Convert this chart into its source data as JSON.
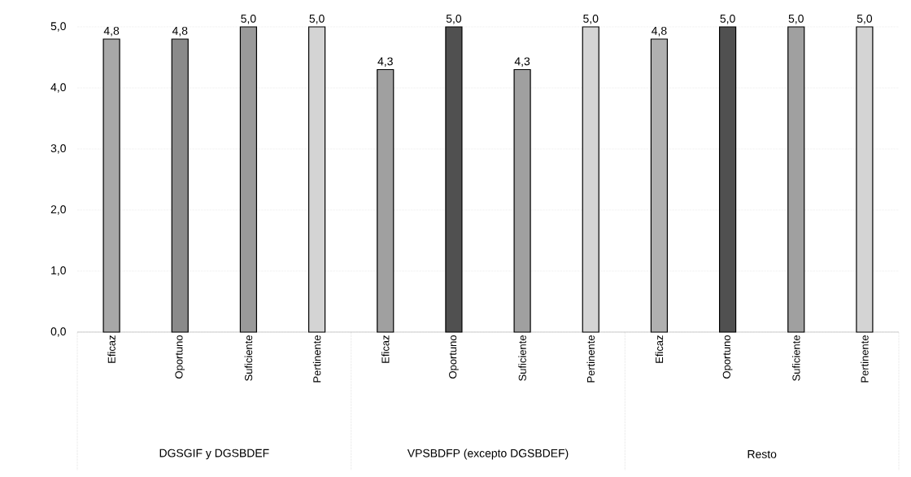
{
  "chart_data": {
    "type": "bar",
    "categories": [
      "Eficaz",
      "Oportuno",
      "Suficiente",
      "Pertinente",
      "Eficaz",
      "Oportuno",
      "Suficiente",
      "Pertinente",
      "Eficaz",
      "Oportuno",
      "Suficiente",
      "Pertinente"
    ],
    "values": [
      4.8,
      4.8,
      5.0,
      5.0,
      4.3,
      5.0,
      4.3,
      5.0,
      4.8,
      5.0,
      5.0,
      5.0
    ],
    "colors": [
      "#a8a8a8",
      "#8a8a8a",
      "#9a9a9a",
      "#d4d4d4",
      "#a0a0a0",
      "#505050",
      "#a0a0a0",
      "#d4d4d4",
      "#b0b0b0",
      "#505050",
      "#a0a0a0",
      "#d4d4d4"
    ],
    "value_labels": [
      "4,8",
      "4,8",
      "5,0",
      "5,0",
      "4,3",
      "5,0",
      "4,3",
      "5,0",
      "4,8",
      "5,0",
      "5,0",
      "5,0"
    ],
    "ylim": [
      0,
      5
    ],
    "yticks": [
      {
        "value": 0,
        "label": "0,0"
      },
      {
        "value": 1,
        "label": "1,0"
      },
      {
        "value": 2,
        "label": "2,0"
      },
      {
        "value": 3,
        "label": "3,0"
      },
      {
        "value": 4,
        "label": "4,0"
      },
      {
        "value": 5,
        "label": "5,0"
      }
    ],
    "grid": "y",
    "annotations": [
      "DGSGIF y DGSBDEF",
      "VPSBDFP (excepto DGSBDEF)",
      "Resto"
    ]
  }
}
